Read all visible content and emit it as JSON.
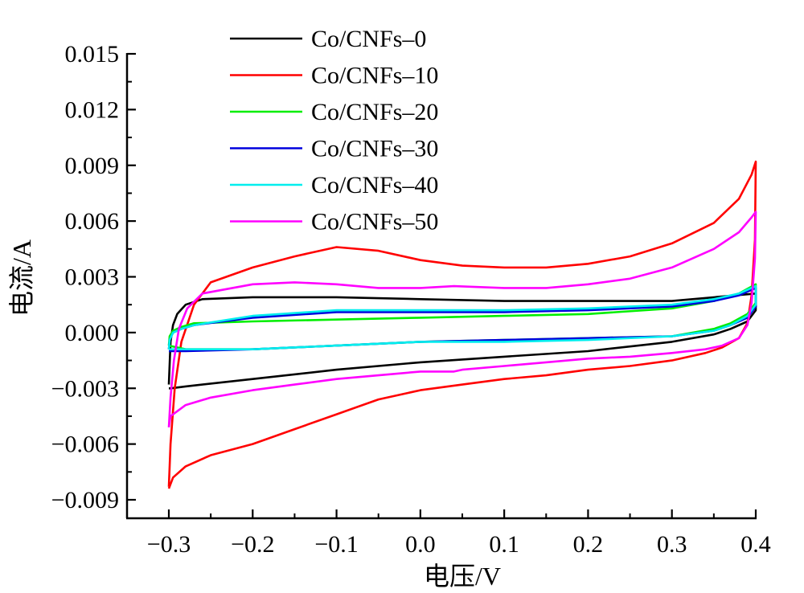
{
  "chart_data": {
    "type": "line",
    "title": "",
    "xlabel": "电压/V",
    "ylabel": "电流/A",
    "xlim": [
      -0.3,
      0.4
    ],
    "ylim": [
      -0.009,
      0.015
    ],
    "xticks": [
      "−0.3",
      "−0.2",
      "−0.1",
      "0.0",
      "0.1",
      "0.2",
      "0.3",
      "0.4"
    ],
    "xtick_values": [
      -0.3,
      -0.2,
      -0.1,
      0.0,
      0.1,
      0.2,
      0.3,
      0.4
    ],
    "yticks": [
      "0.015",
      "0.012",
      "0.009",
      "0.006",
      "0.003",
      "0.000",
      "−0.003",
      "−0.006",
      "−0.009"
    ],
    "ytick_values": [
      0.015,
      0.012,
      0.009,
      0.006,
      0.003,
      0.0,
      -0.003,
      -0.006,
      -0.009
    ],
    "grid": false,
    "legend_position": "top-left",
    "series": [
      {
        "name": "Co/CNFs–0",
        "color": "#000000",
        "x": [
          -0.3,
          -0.298,
          -0.295,
          -0.29,
          -0.28,
          -0.26,
          -0.2,
          -0.1,
          0.0,
          0.1,
          0.2,
          0.3,
          0.4,
          0.4,
          0.39,
          0.37,
          0.35,
          0.3,
          0.2,
          0.1,
          0.0,
          -0.1,
          -0.2,
          -0.28,
          -0.298,
          -0.3
        ],
        "y": [
          -0.0028,
          -0.0005,
          0.0004,
          0.001,
          0.0015,
          0.0018,
          0.0019,
          0.0019,
          0.0018,
          0.0017,
          0.0017,
          0.0017,
          0.0021,
          0.0012,
          0.0006,
          0.0002,
          -0.0001,
          -0.0005,
          -0.001,
          -0.0013,
          -0.0016,
          -0.002,
          -0.0025,
          -0.0029,
          -0.003,
          -0.003
        ]
      },
      {
        "name": "Co/CNFs–10",
        "color": "#ff0000",
        "x": [
          -0.3,
          -0.298,
          -0.293,
          -0.285,
          -0.27,
          -0.25,
          -0.2,
          -0.15,
          -0.1,
          -0.05,
          0.0,
          0.05,
          0.1,
          0.15,
          0.2,
          0.25,
          0.3,
          0.35,
          0.38,
          0.395,
          0.4,
          0.399,
          0.395,
          0.39,
          0.38,
          0.36,
          0.34,
          0.3,
          0.25,
          0.2,
          0.15,
          0.1,
          0.05,
          0.0,
          -0.05,
          -0.1,
          -0.15,
          -0.2,
          -0.25,
          -0.28,
          -0.295,
          -0.3
        ],
        "y": [
          -0.0083,
          -0.006,
          -0.003,
          -0.0005,
          0.0015,
          0.0027,
          0.0035,
          0.0041,
          0.0046,
          0.0044,
          0.0039,
          0.0036,
          0.0035,
          0.0035,
          0.0037,
          0.0041,
          0.0048,
          0.0059,
          0.0072,
          0.0085,
          0.0092,
          0.005,
          0.002,
          0.0005,
          -0.0003,
          -0.0008,
          -0.0011,
          -0.0015,
          -0.0018,
          -0.002,
          -0.0023,
          -0.0025,
          -0.0028,
          -0.0031,
          -0.0036,
          -0.0044,
          -0.0052,
          -0.006,
          -0.0066,
          -0.0072,
          -0.0078,
          -0.0084
        ]
      },
      {
        "name": "Co/CNFs–20",
        "color": "#00ee00",
        "x": [
          -0.3,
          -0.299,
          -0.295,
          -0.285,
          -0.27,
          -0.2,
          -0.1,
          0.0,
          0.1,
          0.2,
          0.3,
          0.35,
          0.38,
          0.4,
          0.4,
          0.39,
          0.37,
          0.35,
          0.3,
          0.2,
          0.1,
          0.0,
          -0.1,
          -0.2,
          -0.28,
          -0.3
        ],
        "y": [
          -0.0007,
          -0.0002,
          0.0001,
          0.0003,
          0.0005,
          0.0006,
          0.0007,
          0.0008,
          0.0009,
          0.001,
          0.0013,
          0.0017,
          0.0021,
          0.0026,
          0.0016,
          0.001,
          0.0005,
          0.0002,
          -0.0002,
          -0.0003,
          -0.0004,
          -0.0005,
          -0.0007,
          -0.0009,
          -0.0009,
          -0.0007
        ]
      },
      {
        "name": "Co/CNFs–30",
        "color": "#0000dd",
        "x": [
          -0.3,
          -0.299,
          -0.295,
          -0.285,
          -0.27,
          -0.2,
          -0.1,
          0.0,
          0.1,
          0.2,
          0.3,
          0.35,
          0.38,
          0.4,
          0.4,
          0.39,
          0.37,
          0.35,
          0.3,
          0.2,
          0.1,
          0.0,
          -0.1,
          -0.2,
          -0.28,
          -0.3
        ],
        "y": [
          -0.0009,
          -0.0004,
          0.0,
          0.0002,
          0.0004,
          0.0008,
          0.0011,
          0.0011,
          0.0011,
          0.0012,
          0.0014,
          0.0017,
          0.002,
          0.0024,
          0.0014,
          0.0008,
          0.0004,
          0.0001,
          -0.0002,
          -0.0003,
          -0.0004,
          -0.0005,
          -0.0007,
          -0.0009,
          -0.001,
          -0.001
        ]
      },
      {
        "name": "Co/CNFs–40",
        "color": "#00eeee",
        "x": [
          -0.3,
          -0.299,
          -0.295,
          -0.285,
          -0.27,
          -0.2,
          -0.1,
          0.0,
          0.1,
          0.2,
          0.3,
          0.35,
          0.38,
          0.4,
          0.4,
          0.39,
          0.37,
          0.35,
          0.3,
          0.2,
          0.1,
          0.0,
          -0.1,
          -0.2,
          -0.28,
          -0.3
        ],
        "y": [
          -0.0009,
          -0.0004,
          0.0,
          0.0002,
          0.0004,
          0.0009,
          0.0012,
          0.0012,
          0.0012,
          0.0013,
          0.0015,
          0.0018,
          0.0021,
          0.0025,
          0.0015,
          0.0009,
          0.0004,
          0.0001,
          -0.0002,
          -0.0004,
          -0.0005,
          -0.0005,
          -0.0007,
          -0.0009,
          -0.0009,
          -0.0009
        ]
      },
      {
        "name": "Co/CNFs–50",
        "color": "#ff00ff",
        "x": [
          -0.3,
          -0.298,
          -0.294,
          -0.288,
          -0.278,
          -0.26,
          -0.2,
          -0.15,
          -0.1,
          -0.05,
          0.0,
          0.04,
          0.1,
          0.15,
          0.2,
          0.25,
          0.3,
          0.35,
          0.38,
          0.395,
          0.4,
          0.399,
          0.395,
          0.39,
          0.38,
          0.36,
          0.34,
          0.3,
          0.25,
          0.2,
          0.15,
          0.1,
          0.05,
          0.04,
          0.0,
          -0.05,
          -0.1,
          -0.15,
          -0.2,
          -0.25,
          -0.28,
          -0.298,
          -0.3
        ],
        "y": [
          -0.0051,
          -0.0035,
          -0.0015,
          0.0002,
          0.0013,
          0.0021,
          0.0026,
          0.0027,
          0.0026,
          0.0024,
          0.0024,
          0.0025,
          0.0024,
          0.0024,
          0.0026,
          0.0029,
          0.0035,
          0.0045,
          0.0054,
          0.0062,
          0.0065,
          0.004,
          0.0016,
          0.0004,
          -0.0003,
          -0.0007,
          -0.0009,
          -0.0011,
          -0.0013,
          -0.0014,
          -0.0016,
          -0.0018,
          -0.002,
          -0.0021,
          -0.0021,
          -0.0023,
          -0.0025,
          -0.0028,
          -0.0031,
          -0.0035,
          -0.0039,
          -0.0045,
          -0.0051
        ]
      }
    ]
  }
}
